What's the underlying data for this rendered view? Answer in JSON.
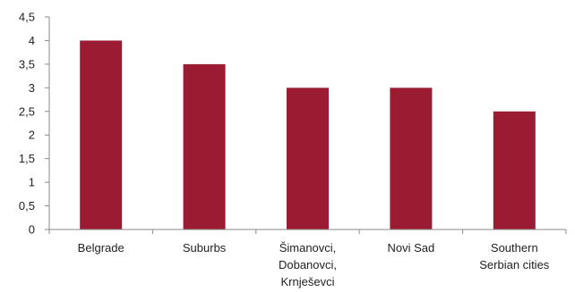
{
  "chart_data": {
    "type": "bar",
    "title": "",
    "xlabel": "",
    "ylabel": "",
    "categories": [
      [
        "Belgrade"
      ],
      [
        "Suburbs"
      ],
      [
        "Šimanovci,",
        "Dobanovci,",
        "Krnješevci"
      ],
      [
        "Novi Sad"
      ],
      [
        "Southern",
        "Serbian cities"
      ]
    ],
    "values": [
      4,
      3.5,
      3,
      3,
      2.5
    ],
    "y_ticks": [
      "0",
      "0,5",
      "1",
      "1,5",
      "2",
      "2,5",
      "3",
      "3,5",
      "4",
      "4,5"
    ],
    "ylim": [
      0,
      4.5
    ],
    "grid": false,
    "legend": "none",
    "bar_color": "#9a1b32",
    "axis_color": "#8a8a8a"
  }
}
